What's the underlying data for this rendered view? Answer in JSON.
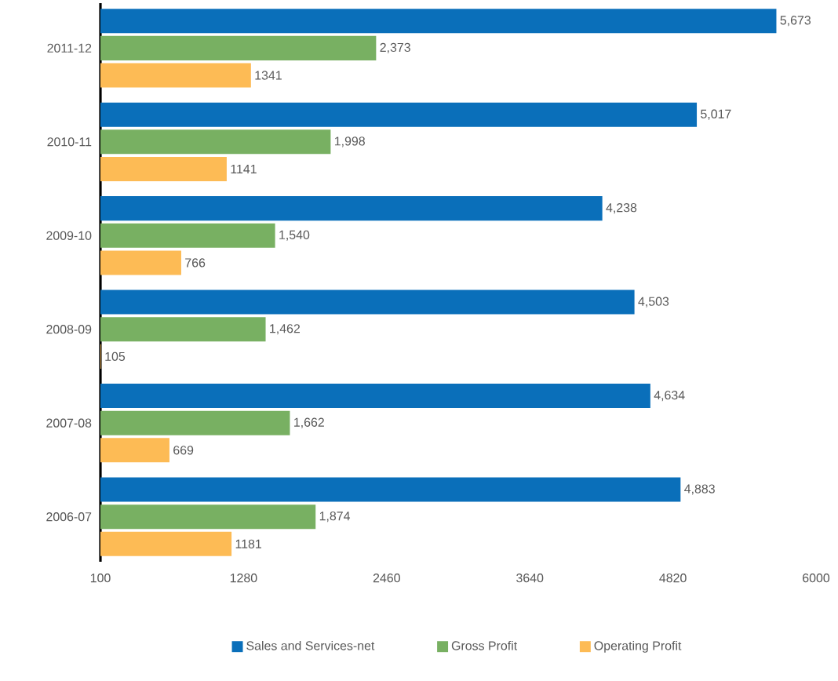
{
  "chart_data": {
    "type": "bar",
    "orientation": "horizontal",
    "categories": [
      "2011-12",
      "2010-11",
      "2009-10",
      "2008-09",
      "2007-08",
      "2006-07"
    ],
    "series": [
      {
        "name": "Sales and Services-net",
        "color": "#0a6fba",
        "values": [
          5673,
          5017,
          4238,
          4503,
          4634,
          4883
        ],
        "value_labels": [
          "5,673",
          "5,017",
          "4,238",
          "4,503",
          "4,634",
          "4,883"
        ]
      },
      {
        "name": "Gross Profit",
        "color": "#78b062",
        "values": [
          2373,
          1998,
          1540,
          1462,
          1662,
          1874
        ],
        "value_labels": [
          "2,373",
          "1,998",
          "1,540",
          "1,462",
          "1,662",
          "1,874"
        ]
      },
      {
        "name": "Operating Profit",
        "color": "#fdbb55",
        "values": [
          1341,
          1141,
          766,
          105,
          669,
          1181
        ],
        "value_labels": [
          "1341",
          "1141",
          "766",
          "105",
          "669",
          "1181"
        ]
      }
    ],
    "xlim": [
      100,
      6000
    ],
    "xticks": [
      100,
      1280,
      2460,
      3640,
      4820,
      6000
    ],
    "grid": false,
    "legend": "bottom"
  }
}
